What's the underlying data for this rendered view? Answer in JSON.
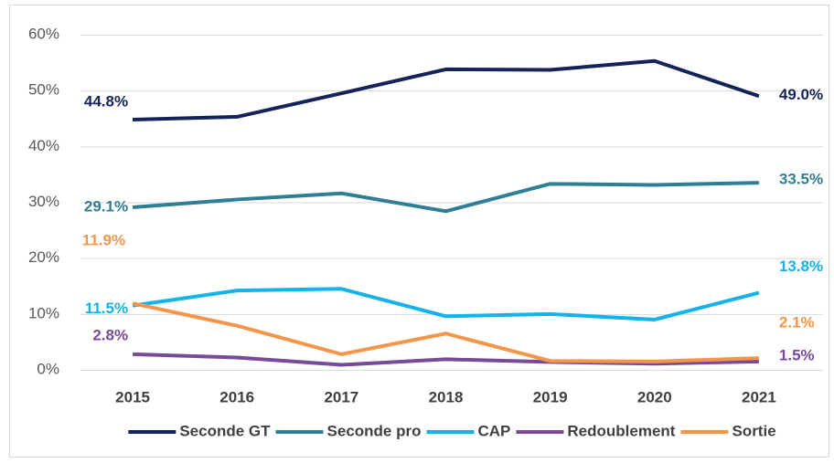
{
  "chart_data": {
    "type": "line",
    "x": [
      "2015",
      "2016",
      "2017",
      "2018",
      "2019",
      "2020",
      "2021"
    ],
    "series": [
      {
        "name": "Seconde GT",
        "color": "#14235a",
        "values": [
          44.8,
          45.3,
          49.5,
          53.8,
          53.7,
          55.3,
          49.0
        ],
        "value_labels": [
          "44.8%",
          null,
          null,
          null,
          null,
          null,
          "49.0%"
        ]
      },
      {
        "name": "Seconde pro",
        "color": "#2e7f96",
        "values": [
          29.1,
          30.5,
          31.6,
          28.4,
          33.3,
          33.1,
          33.5
        ],
        "value_labels": [
          "29.1%",
          null,
          null,
          null,
          null,
          null,
          "33.5%"
        ]
      },
      {
        "name": "CAP",
        "color": "#14b4ea",
        "values": [
          11.5,
          14.2,
          14.5,
          9.6,
          10.0,
          9.0,
          13.8
        ],
        "value_labels": [
          "11.5%",
          null,
          null,
          null,
          null,
          null,
          "13.8%"
        ]
      },
      {
        "name": "Redoublement",
        "color": "#7a4a9a",
        "values": [
          2.8,
          2.2,
          0.9,
          1.9,
          1.4,
          1.1,
          1.5
        ],
        "value_labels": [
          "2.8%",
          null,
          null,
          null,
          null,
          null,
          "1.5%"
        ]
      },
      {
        "name": "Sortie",
        "color": "#f4964a",
        "values": [
          11.9,
          7.9,
          2.8,
          6.5,
          1.6,
          1.5,
          2.1
        ],
        "value_labels": [
          "11.9%",
          null,
          null,
          null,
          null,
          null,
          "2.1%"
        ]
      }
    ],
    "ylim": [
      0,
      60
    ],
    "yticks": [
      {
        "value": 0,
        "label": "0%"
      },
      {
        "value": 10,
        "label": "10%"
      },
      {
        "value": 20,
        "label": "20%"
      },
      {
        "value": 30,
        "label": "30%"
      },
      {
        "value": 40,
        "label": "40%"
      },
      {
        "value": 50,
        "label": "50%"
      },
      {
        "value": 60,
        "label": "60%"
      }
    ],
    "grid": true,
    "legend": "bottom"
  }
}
